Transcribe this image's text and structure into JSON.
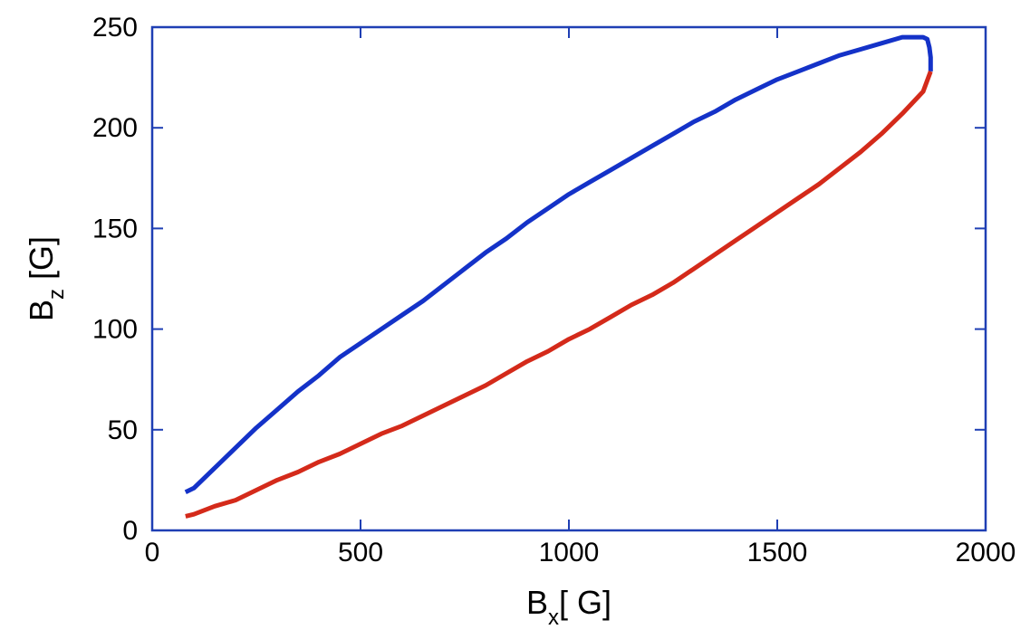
{
  "chart_data": {
    "type": "line",
    "xlabel": {
      "base": "B",
      "sub": "x",
      "suffix": "[ G]"
    },
    "ylabel": {
      "base": "B",
      "sub": "z",
      "suffix": " [G]"
    },
    "xlim": [
      0,
      2000
    ],
    "ylim": [
      0,
      250
    ],
    "xticks": [
      0,
      500,
      1000,
      1500,
      2000
    ],
    "yticks": [
      0,
      50,
      100,
      150,
      200,
      250
    ],
    "xtick_labels": [
      "0",
      "500",
      "1000",
      "1500",
      "2000"
    ],
    "ytick_labels": [
      "0",
      "50",
      "100",
      "150",
      "200",
      "250"
    ],
    "grid": false,
    "frame_color": "#1f3fb4",
    "series": [
      {
        "color": "#1432c8",
        "x": [
          80,
          100,
          150,
          200,
          250,
          300,
          350,
          400,
          450,
          500,
          550,
          600,
          650,
          700,
          750,
          800,
          850,
          900,
          950,
          1000,
          1050,
          1100,
          1150,
          1200,
          1250,
          1300,
          1350,
          1400,
          1450,
          1500,
          1550,
          1600,
          1650,
          1700,
          1750,
          1800,
          1850,
          1860,
          1865,
          1868,
          1868
        ],
        "y": [
          19,
          21,
          31,
          41,
          51,
          60,
          69,
          77,
          86,
          93,
          100,
          107,
          114,
          122,
          130,
          138,
          145,
          153,
          160,
          167,
          173,
          179,
          185,
          191,
          197,
          203,
          208,
          214,
          219,
          224,
          228,
          232,
          236,
          239,
          242,
          245,
          245,
          244,
          240,
          235,
          228
        ]
      },
      {
        "color": "#d42a1a",
        "x": [
          80,
          100,
          150,
          200,
          250,
          300,
          350,
          400,
          450,
          500,
          550,
          600,
          650,
          700,
          750,
          800,
          850,
          900,
          950,
          1000,
          1050,
          1100,
          1150,
          1200,
          1250,
          1300,
          1350,
          1400,
          1450,
          1500,
          1550,
          1600,
          1650,
          1700,
          1750,
          1800,
          1850,
          1868
        ],
        "y": [
          7,
          8,
          12,
          15,
          20,
          25,
          29,
          34,
          38,
          43,
          48,
          52,
          57,
          62,
          67,
          72,
          78,
          84,
          89,
          95,
          100,
          106,
          112,
          117,
          123,
          130,
          137,
          144,
          151,
          158,
          165,
          172,
          180,
          188,
          197,
          207,
          218,
          228
        ]
      }
    ]
  }
}
